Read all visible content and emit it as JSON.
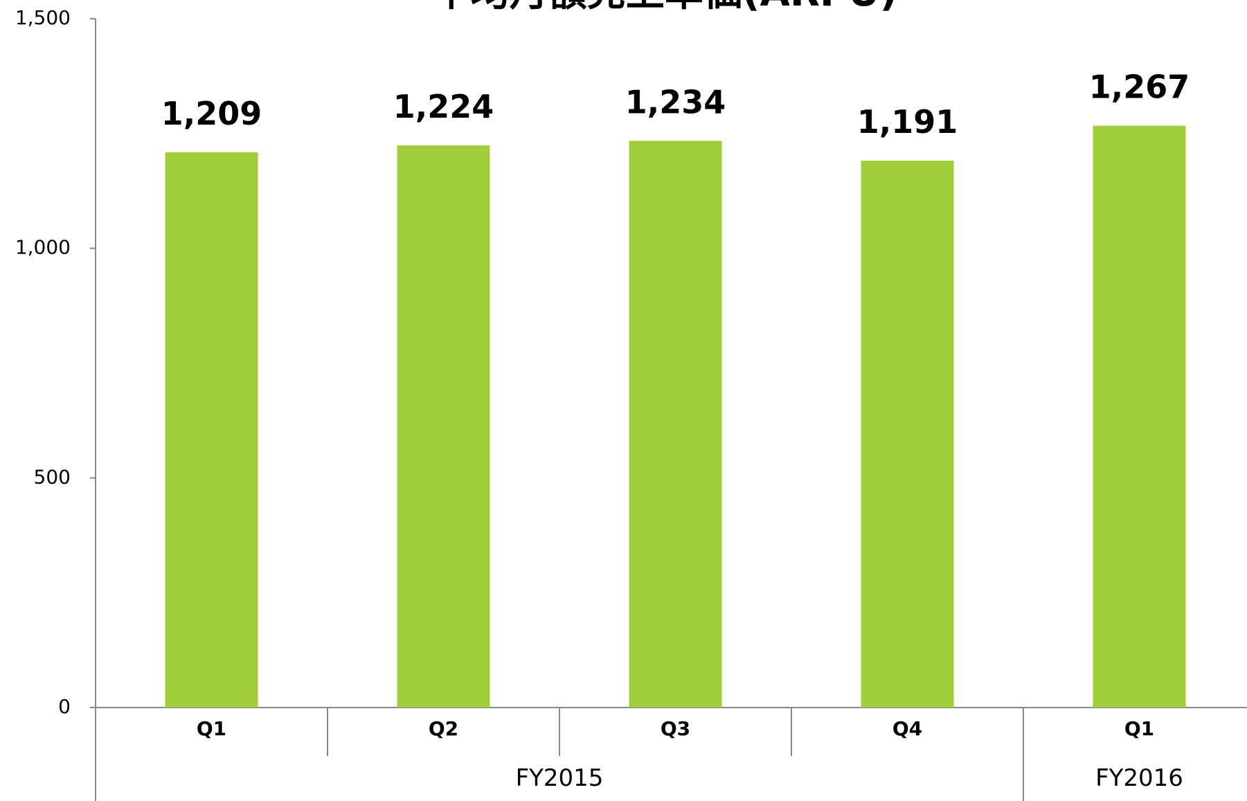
{
  "chart_data": {
    "type": "bar",
    "title": "平均月額売上単価(ARPU)",
    "xlabel": "",
    "ylabel": "",
    "categories": [
      "Q1",
      "Q2",
      "Q3",
      "Q4",
      "Q1"
    ],
    "groups": [
      {
        "label": "FY2015",
        "span": 4
      },
      {
        "label": "FY2016",
        "span": 1
      }
    ],
    "series": [
      {
        "values": [
          1209,
          1224,
          1234,
          1191,
          1267
        ],
        "labels": [
          "1,209",
          "1,224",
          "1,234",
          "1,191",
          "1,267"
        ]
      }
    ],
    "ylim": [
      0,
      1500
    ],
    "yticks": [
      0,
      500,
      1000,
      1500
    ],
    "ytick_labels": [
      "0",
      "500",
      "1,000",
      "1,500"
    ],
    "grid": false,
    "legend": "none",
    "bar_color": "#a1cd3a",
    "axis_color": "#888888"
  }
}
